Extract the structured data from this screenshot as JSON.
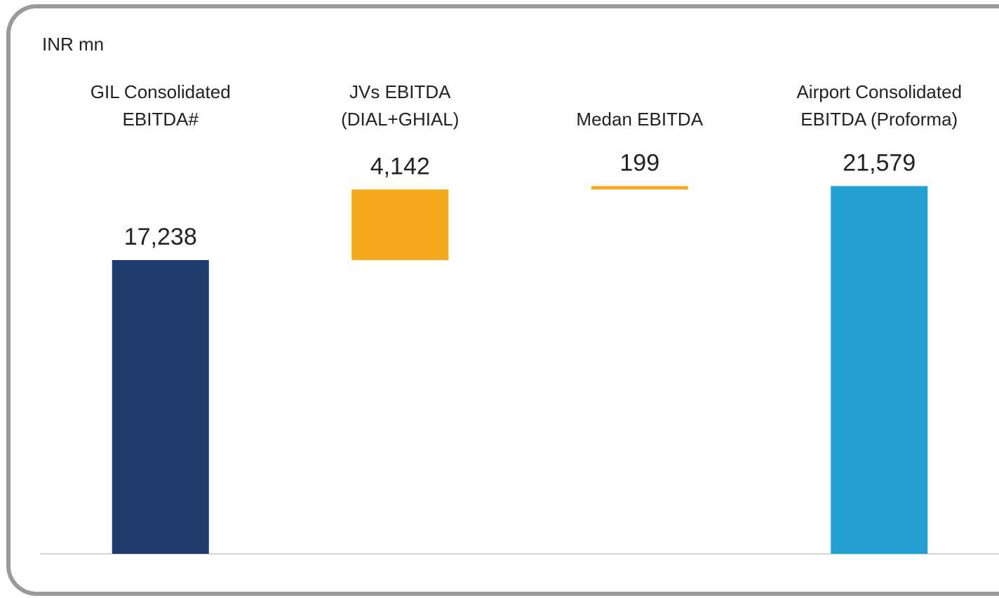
{
  "chart_data": {
    "type": "waterfall",
    "unit_label": "INR mn",
    "categories": [
      "GIL Consolidated\nEBITDA#",
      "JVs EBITDA\n(DIAL+GHIAL)",
      "Medan EBITDA",
      "Airport Consolidated\nEBITDA (Proforma)"
    ],
    "values": [
      17238,
      4142,
      199,
      21579
    ],
    "value_labels": [
      "17,238",
      "4,142",
      "199",
      "21,579"
    ],
    "is_total": [
      false,
      false,
      false,
      true
    ],
    "colors": [
      "#1f3b6e",
      "#f4a81d",
      "#f4a81d",
      "#23a0d0"
    ],
    "ylim": [
      0,
      24000
    ]
  }
}
